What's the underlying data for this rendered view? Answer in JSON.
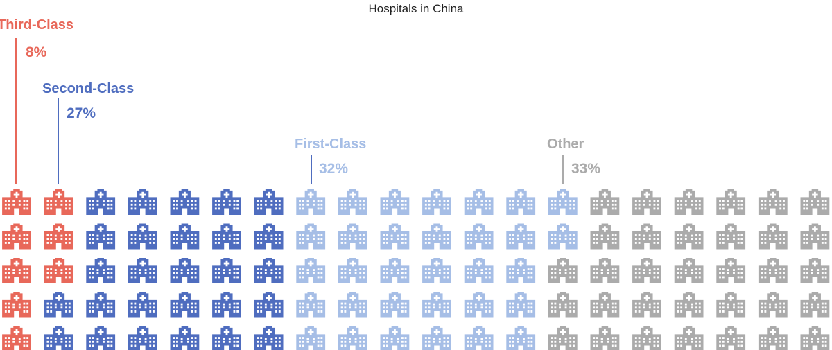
{
  "chart_data": {
    "type": "waffle",
    "title": "Hospitals in China",
    "grid": {
      "rows": 5,
      "columns": 20,
      "units_per_icon": 1
    },
    "icon": "hospital-icon",
    "categories": [
      {
        "name": "Third-Class",
        "value": 8,
        "value_label": "8%",
        "icons": 8,
        "color": "#E8685A"
      },
      {
        "name": "Second-Class",
        "value": 27,
        "value_label": "27%",
        "icons": 27,
        "color": "#4F6DBF"
      },
      {
        "name": "First-Class",
        "value": 32,
        "value_label": "32%",
        "icons": 32,
        "color": "#A6BEE6"
      },
      {
        "name": "Other",
        "value": 33,
        "value_label": "33%",
        "icons": 33,
        "color": "#ABABAB"
      }
    ],
    "fill_order": "column-major, left to right, top to bottom"
  }
}
